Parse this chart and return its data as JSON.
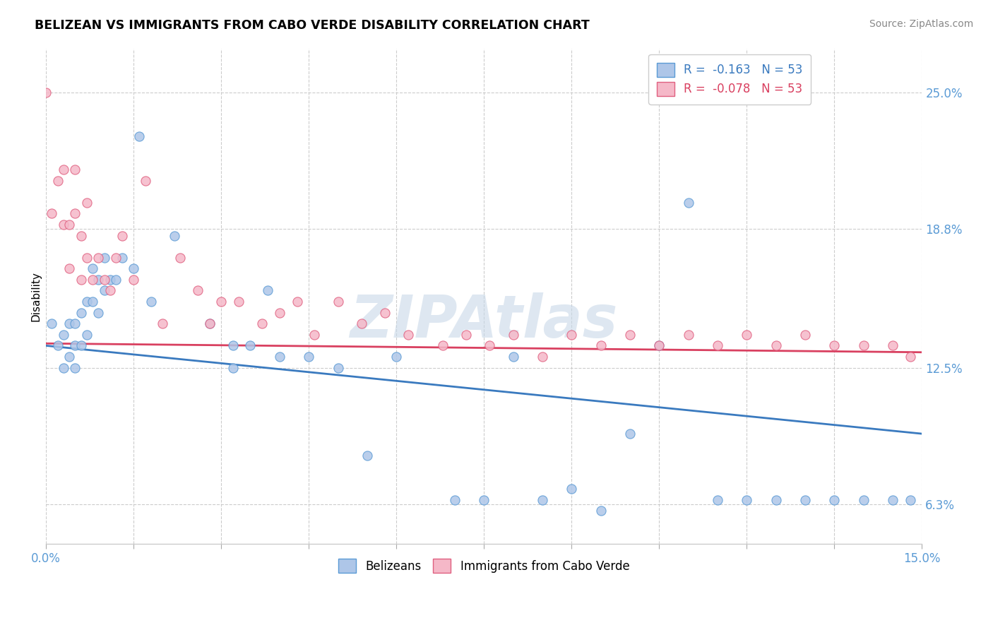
{
  "title": "BELIZEAN VS IMMIGRANTS FROM CABO VERDE DISABILITY CORRELATION CHART",
  "source": "Source: ZipAtlas.com",
  "ylabel": "Disability",
  "xlim": [
    0.0,
    0.15
  ],
  "ylim": [
    0.045,
    0.27
  ],
  "right_yticks": [
    0.063,
    0.125,
    0.188,
    0.25
  ],
  "right_yticklabels": [
    "6.3%",
    "12.5%",
    "18.8%",
    "25.0%"
  ],
  "xticks": [
    0.0,
    0.015,
    0.03,
    0.045,
    0.06,
    0.075,
    0.09,
    0.105,
    0.12,
    0.135,
    0.15
  ],
  "xticklabels": [
    "0.0%",
    "",
    "",
    "",
    "",
    "",
    "",
    "",
    "",
    "",
    "15.0%"
  ],
  "blue_color": "#aec6e8",
  "pink_color": "#f5b8c8",
  "blue_edge_color": "#5b9bd5",
  "pink_edge_color": "#e06080",
  "blue_line_color": "#3a7abf",
  "pink_line_color": "#d94060",
  "watermark": "ZipAtlas",
  "blue_x": [
    0.001,
    0.002,
    0.003,
    0.003,
    0.004,
    0.004,
    0.005,
    0.005,
    0.005,
    0.006,
    0.006,
    0.007,
    0.007,
    0.008,
    0.008,
    0.009,
    0.009,
    0.01,
    0.01,
    0.011,
    0.012,
    0.013,
    0.015,
    0.016,
    0.018,
    0.022,
    0.028,
    0.032,
    0.032,
    0.035,
    0.038,
    0.04,
    0.045,
    0.05,
    0.055,
    0.06,
    0.07,
    0.075,
    0.08,
    0.085,
    0.09,
    0.095,
    0.1,
    0.105,
    0.11,
    0.115,
    0.12,
    0.125,
    0.13,
    0.135,
    0.14,
    0.145,
    0.148
  ],
  "blue_y": [
    0.145,
    0.135,
    0.14,
    0.125,
    0.145,
    0.13,
    0.145,
    0.135,
    0.125,
    0.15,
    0.135,
    0.155,
    0.14,
    0.17,
    0.155,
    0.165,
    0.15,
    0.175,
    0.16,
    0.165,
    0.165,
    0.175,
    0.17,
    0.23,
    0.155,
    0.185,
    0.145,
    0.135,
    0.125,
    0.135,
    0.16,
    0.13,
    0.13,
    0.125,
    0.085,
    0.13,
    0.065,
    0.065,
    0.13,
    0.065,
    0.07,
    0.06,
    0.095,
    0.135,
    0.2,
    0.065,
    0.065,
    0.065,
    0.065,
    0.065,
    0.065,
    0.065,
    0.065
  ],
  "pink_x": [
    0.0,
    0.001,
    0.002,
    0.003,
    0.003,
    0.004,
    0.004,
    0.005,
    0.005,
    0.006,
    0.006,
    0.007,
    0.007,
    0.008,
    0.009,
    0.01,
    0.011,
    0.012,
    0.013,
    0.015,
    0.017,
    0.02,
    0.023,
    0.026,
    0.028,
    0.03,
    0.033,
    0.037,
    0.04,
    0.043,
    0.046,
    0.05,
    0.054,
    0.058,
    0.062,
    0.068,
    0.072,
    0.076,
    0.08,
    0.085,
    0.09,
    0.095,
    0.1,
    0.105,
    0.11,
    0.115,
    0.12,
    0.125,
    0.13,
    0.135,
    0.14,
    0.145,
    0.148
  ],
  "pink_y": [
    0.25,
    0.195,
    0.21,
    0.215,
    0.19,
    0.19,
    0.17,
    0.215,
    0.195,
    0.185,
    0.165,
    0.2,
    0.175,
    0.165,
    0.175,
    0.165,
    0.16,
    0.175,
    0.185,
    0.165,
    0.21,
    0.145,
    0.175,
    0.16,
    0.145,
    0.155,
    0.155,
    0.145,
    0.15,
    0.155,
    0.14,
    0.155,
    0.145,
    0.15,
    0.14,
    0.135,
    0.14,
    0.135,
    0.14,
    0.13,
    0.14,
    0.135,
    0.14,
    0.135,
    0.14,
    0.135,
    0.14,
    0.135,
    0.14,
    0.135,
    0.135,
    0.135,
    0.13
  ]
}
